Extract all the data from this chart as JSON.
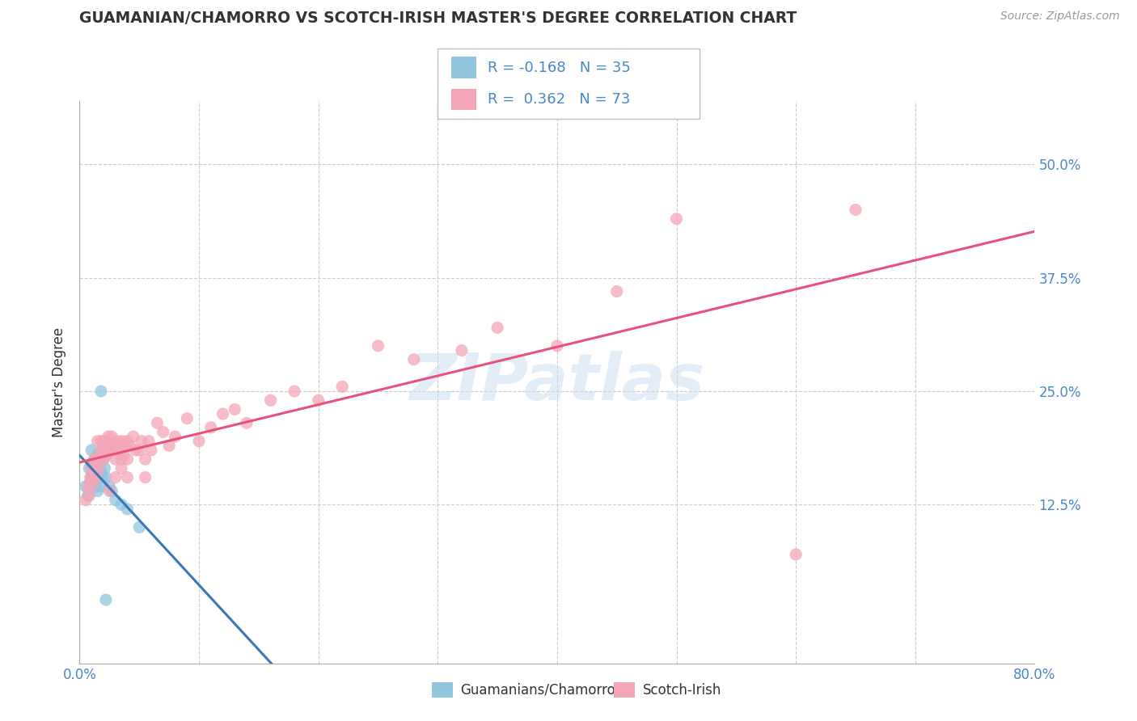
{
  "title": "GUAMANIAN/CHAMORRO VS SCOTCH-IRISH MASTER'S DEGREE CORRELATION CHART",
  "source": "Source: ZipAtlas.com",
  "xlabel_blue": "Guamanians/Chamorros",
  "xlabel_pink": "Scotch-Irish",
  "ylabel": "Master's Degree",
  "xlim": [
    0.0,
    0.8
  ],
  "ylim": [
    -0.05,
    0.57
  ],
  "xticks": [
    0.0,
    0.1,
    0.2,
    0.3,
    0.4,
    0.5,
    0.6,
    0.7,
    0.8
  ],
  "xticklabels": [
    "0.0%",
    "",
    "",
    "",
    "",
    "",
    "",
    "",
    "80.0%"
  ],
  "yticks": [
    0.125,
    0.25,
    0.375,
    0.5
  ],
  "yticklabels": [
    "12.5%",
    "25.0%",
    "37.5%",
    "50.0%"
  ],
  "blue_color": "#92c5de",
  "pink_color": "#f4a6b8",
  "blue_line_color": "#3a78b5",
  "pink_line_color": "#e8527a",
  "R_blue": -0.168,
  "N_blue": 35,
  "R_pink": 0.362,
  "N_pink": 73,
  "blue_scatter_x": [
    0.005,
    0.007,
    0.008,
    0.009,
    0.01,
    0.01,
    0.01,
    0.011,
    0.012,
    0.012,
    0.013,
    0.013,
    0.014,
    0.014,
    0.015,
    0.015,
    0.015,
    0.016,
    0.016,
    0.017,
    0.018,
    0.018,
    0.019,
    0.02,
    0.02,
    0.021,
    0.022,
    0.025,
    0.027,
    0.03,
    0.035,
    0.04,
    0.05,
    0.018,
    0.022
  ],
  "blue_scatter_y": [
    0.145,
    0.135,
    0.165,
    0.15,
    0.185,
    0.17,
    0.155,
    0.16,
    0.15,
    0.17,
    0.175,
    0.155,
    0.145,
    0.165,
    0.18,
    0.165,
    0.14,
    0.175,
    0.155,
    0.165,
    0.16,
    0.145,
    0.155,
    0.175,
    0.19,
    0.165,
    0.155,
    0.145,
    0.14,
    0.13,
    0.125,
    0.12,
    0.1,
    0.25,
    0.02
  ],
  "pink_scatter_x": [
    0.005,
    0.007,
    0.008,
    0.009,
    0.01,
    0.01,
    0.011,
    0.012,
    0.013,
    0.014,
    0.015,
    0.015,
    0.016,
    0.017,
    0.018,
    0.018,
    0.019,
    0.02,
    0.02,
    0.021,
    0.022,
    0.023,
    0.024,
    0.025,
    0.026,
    0.027,
    0.028,
    0.03,
    0.03,
    0.032,
    0.033,
    0.035,
    0.036,
    0.037,
    0.038,
    0.04,
    0.04,
    0.042,
    0.045,
    0.047,
    0.05,
    0.052,
    0.055,
    0.058,
    0.06,
    0.065,
    0.07,
    0.075,
    0.08,
    0.09,
    0.1,
    0.11,
    0.12,
    0.13,
    0.14,
    0.16,
    0.18,
    0.2,
    0.22,
    0.25,
    0.28,
    0.32,
    0.35,
    0.4,
    0.45,
    0.5,
    0.025,
    0.03,
    0.035,
    0.04,
    0.055,
    0.6,
    0.65
  ],
  "pink_scatter_y": [
    0.13,
    0.145,
    0.135,
    0.155,
    0.145,
    0.165,
    0.155,
    0.175,
    0.165,
    0.155,
    0.175,
    0.195,
    0.165,
    0.18,
    0.195,
    0.175,
    0.185,
    0.195,
    0.175,
    0.185,
    0.195,
    0.18,
    0.2,
    0.185,
    0.19,
    0.2,
    0.185,
    0.19,
    0.175,
    0.195,
    0.185,
    0.175,
    0.195,
    0.18,
    0.19,
    0.195,
    0.175,
    0.19,
    0.2,
    0.185,
    0.185,
    0.195,
    0.175,
    0.195,
    0.185,
    0.215,
    0.205,
    0.19,
    0.2,
    0.22,
    0.195,
    0.21,
    0.225,
    0.23,
    0.215,
    0.24,
    0.25,
    0.24,
    0.255,
    0.3,
    0.285,
    0.295,
    0.32,
    0.3,
    0.36,
    0.44,
    0.14,
    0.155,
    0.165,
    0.155,
    0.155,
    0.07,
    0.45
  ],
  "background_color": "#ffffff",
  "grid_color": "#cccccc",
  "watermark_color": "#c8ddf0",
  "title_color": "#333333",
  "tick_color": "#4a86c8",
  "axis_color": "#aaaaaa"
}
